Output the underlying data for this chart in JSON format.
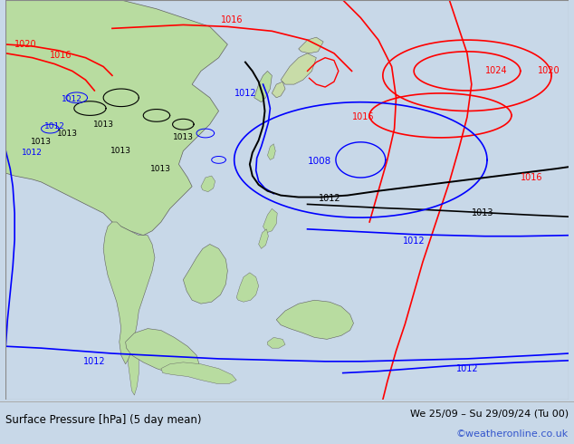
{
  "title_left": "Surface Pressure [hPa] (5 day mean)",
  "title_right": "We 25/09 – Su 29/09/24 (Tu 00)",
  "watermark": "©weatheronline.co.uk",
  "bg_ocean": "#d8e8f0",
  "land_green": "#b8dca0",
  "land_edge": "#888888",
  "figsize": [
    6.34,
    4.9
  ],
  "dpi": 100
}
